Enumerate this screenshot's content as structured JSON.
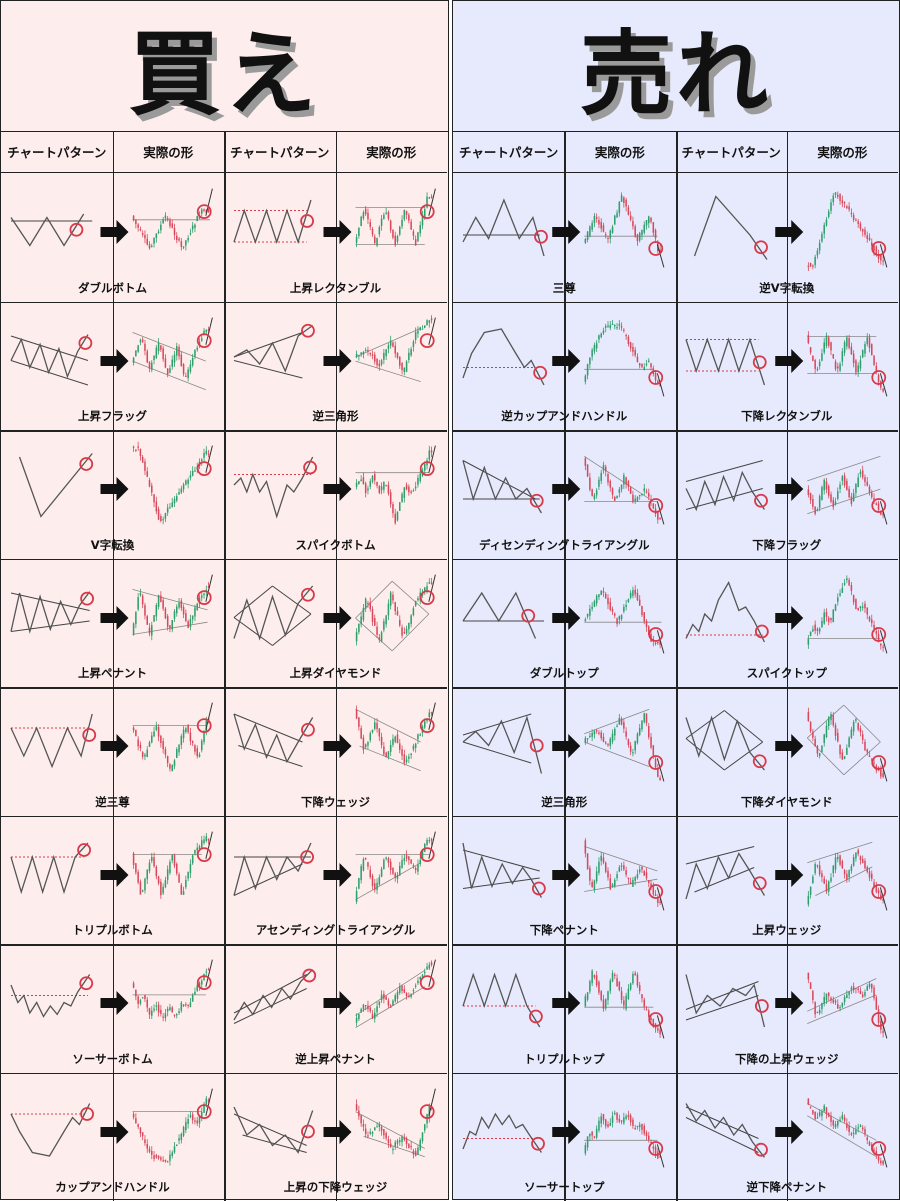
{
  "colors": {
    "buy_bg": "#fdeeed",
    "sell_bg": "#e7eafc",
    "marker": "#d83a4a",
    "line": "#555555",
    "candle_up": "#2e9e6b",
    "candle_down": "#d8485a"
  },
  "buy": {
    "title": "買え",
    "headers": [
      "チャートパターン",
      "実際の形",
      "チャートパターン",
      "実際の形"
    ],
    "patterns": [
      {
        "label": "ダブルボトム",
        "shape": "double-bottom"
      },
      {
        "label": "上昇レクタンブル",
        "shape": "rectangle-up"
      },
      {
        "label": "上昇フラッグ",
        "shape": "flag-up"
      },
      {
        "label": "逆三角形",
        "shape": "broadening-up"
      },
      {
        "label": "V字転換",
        "shape": "v-reversal"
      },
      {
        "label": "スパイクボトム",
        "shape": "spike-bottom"
      },
      {
        "label": "上昇ペナント",
        "shape": "pennant-up"
      },
      {
        "label": "上昇ダイヤモンド",
        "shape": "diamond-up"
      },
      {
        "label": "逆三尊",
        "shape": "inverse-hs"
      },
      {
        "label": "下降ウェッジ",
        "shape": "falling-wedge"
      },
      {
        "label": "トリプルボトム",
        "shape": "triple-bottom"
      },
      {
        "label": "アセンディングトライアングル",
        "shape": "ascending-triangle"
      },
      {
        "label": "ソーサーボトム",
        "shape": "saucer-bottom"
      },
      {
        "label": "逆上昇ペナント",
        "shape": "reverse-pennant-up"
      },
      {
        "label": "カップアンドハンドル",
        "shape": "cup-handle"
      },
      {
        "label": "上昇の下降ウェッジ",
        "shape": "falling-wedge-in-uptrend"
      }
    ]
  },
  "sell": {
    "title": "売れ",
    "headers": [
      "チャートパターン",
      "実際の形",
      "チャートパターン",
      "実際の形"
    ],
    "patterns": [
      {
        "label": "三尊",
        "shape": "head-shoulders"
      },
      {
        "label": "逆V字転換",
        "shape": "inverse-v"
      },
      {
        "label": "逆カップアンドハンドル",
        "shape": "inverse-cup"
      },
      {
        "label": "下降レクタンブル",
        "shape": "rectangle-down"
      },
      {
        "label": "ディセンディングトライアングル",
        "shape": "descending-triangle"
      },
      {
        "label": "下降フラッグ",
        "shape": "flag-down"
      },
      {
        "label": "ダブルトップ",
        "shape": "double-top"
      },
      {
        "label": "スパイクトップ",
        "shape": "spike-top"
      },
      {
        "label": "逆三角形",
        "shape": "broadening-down"
      },
      {
        "label": "下降ダイヤモンド",
        "shape": "diamond-down"
      },
      {
        "label": "下降ペナント",
        "shape": "pennant-down"
      },
      {
        "label": "上昇ウェッジ",
        "shape": "rising-wedge"
      },
      {
        "label": "トリプルトップ",
        "shape": "triple-top"
      },
      {
        "label": "下降の上昇ウェッジ",
        "shape": "rising-wedge-in-downtrend"
      },
      {
        "label": "ソーサートップ",
        "shape": "saucer-top"
      },
      {
        "label": "逆下降ペナント",
        "shape": "reverse-pennant-down"
      }
    ]
  }
}
